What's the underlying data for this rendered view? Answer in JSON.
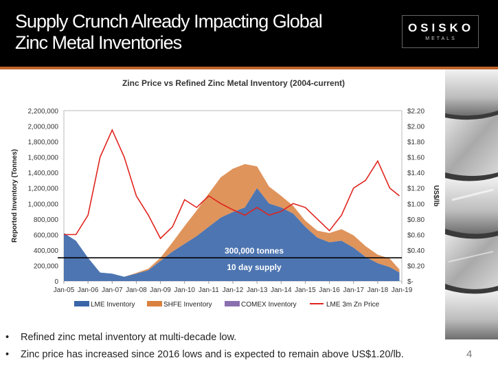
{
  "slide": {
    "title_lines": [
      "Supply Crunch Already Impacting Global",
      "Zinc Metal Inventories"
    ],
    "logo_text": "OSISKO",
    "logo_sub": "METALS",
    "page_number": "4",
    "bullets": [
      "Refined zinc metal inventory at multi-decade low.",
      "Zinc price has increased since 2016 lows and is expected to remain above US$1.20/lb."
    ]
  },
  "chart_data": {
    "type": "area",
    "title": "Zinc Price vs Refined Zinc Metal Inventory (2004-current)",
    "ylabel": "Reported Inventory (Tonnes)",
    "ylabel_right": "US$/lb",
    "x_ticks": [
      "Jan-05",
      "Jan-06",
      "Jan-07",
      "Jan-08",
      "Jan-09",
      "Jan-10",
      "Jan-11",
      "Jan-12",
      "Jan-13",
      "Jan-14",
      "Jan-15",
      "Jan-16",
      "Jan-17",
      "Jan-18",
      "Jan-19"
    ],
    "x": [
      2005.0,
      2005.5,
      2006.0,
      2006.5,
      2007.0,
      2007.5,
      2008.0,
      2008.5,
      2009.0,
      2009.5,
      2010.0,
      2010.5,
      2011.0,
      2011.5,
      2012.0,
      2012.5,
      2013.0,
      2013.5,
      2014.0,
      2014.5,
      2015.0,
      2015.5,
      2016.0,
      2016.5,
      2017.0,
      2017.5,
      2018.0,
      2018.5,
      2018.9
    ],
    "ylim": [
      0,
      2200000
    ],
    "y_ticks": [
      "0",
      "200,000",
      "400,000",
      "600,000",
      "800,000",
      "1,000,000",
      "1,200,000",
      "1,400,000",
      "1,600,000",
      "1,800,000",
      "2,000,000",
      "2,200,000"
    ],
    "y2lim": [
      0,
      2.2
    ],
    "y2_ticks": [
      "$-",
      "$0.20",
      "$0.40",
      "$0.60",
      "$0.80",
      "$1.00",
      "$1.20",
      "$1.40",
      "$1.60",
      "$1.80",
      "$2.00",
      "$2.20"
    ],
    "series": [
      {
        "name": "LME Inventory",
        "color": "#3a66a8",
        "values": [
          620000,
          520000,
          300000,
          110000,
          95000,
          55000,
          95000,
          140000,
          260000,
          380000,
          480000,
          580000,
          700000,
          820000,
          890000,
          950000,
          1200000,
          1000000,
          950000,
          870000,
          700000,
          560000,
          500000,
          520000,
          430000,
          310000,
          230000,
          180000,
          110000
        ]
      },
      {
        "name": "SHFE Inventory",
        "color": "#d9813f",
        "values": [
          0,
          0,
          0,
          0,
          0,
          0,
          10000,
          20000,
          40000,
          120000,
          230000,
          330000,
          430000,
          520000,
          560000,
          560000,
          280000,
          220000,
          150000,
          100000,
          80000,
          90000,
          120000,
          150000,
          160000,
          140000,
          110000,
          110000,
          40000
        ]
      },
      {
        "name": "COMEX Inventory",
        "color": "#8a6fb0",
        "values": [
          0,
          0,
          0,
          0,
          0,
          0,
          0,
          0,
          0,
          0,
          0,
          0,
          0,
          0,
          0,
          0,
          0,
          0,
          0,
          0,
          0,
          0,
          0,
          0,
          0,
          0,
          0,
          0,
          0
        ]
      },
      {
        "name": "LME 3m Zn Price",
        "color": "#e0231c",
        "axis": "right",
        "values": [
          0.6,
          0.6,
          0.85,
          1.6,
          1.95,
          1.6,
          1.1,
          0.85,
          0.55,
          0.7,
          1.05,
          0.95,
          1.1,
          1.0,
          0.92,
          0.85,
          0.95,
          0.85,
          0.9,
          1.0,
          0.95,
          0.8,
          0.65,
          0.85,
          1.2,
          1.3,
          1.55,
          1.2,
          1.1
        ]
      }
    ],
    "annotation": {
      "line_y": 300000,
      "label_above": "300,000 tonnes",
      "label_below": "10 day supply"
    }
  }
}
